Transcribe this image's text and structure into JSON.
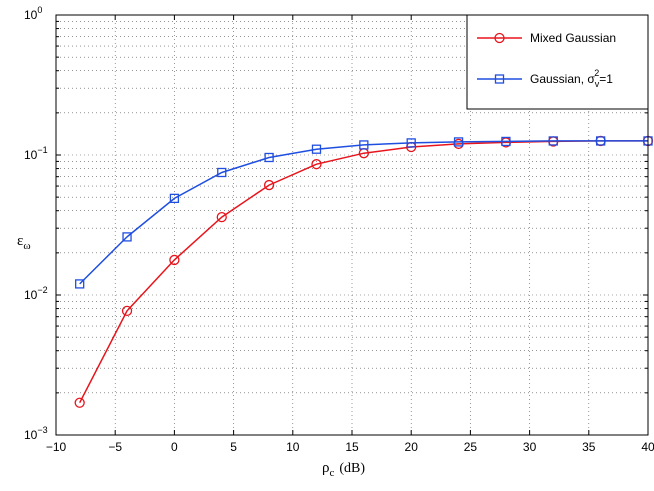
{
  "chart_data": {
    "type": "line",
    "yscale": "log",
    "xlabel": "ρc (dB)",
    "xlabel_symbol": "ρ",
    "xlabel_subscript": "c",
    "xlabel_unit": "(dB)",
    "ylabel": "εω",
    "ylabel_symbol": "ε",
    "ylabel_subscript": "ω",
    "xlim": [
      -10,
      40
    ],
    "ylim": [
      0.001,
      1
    ],
    "xticks": [
      -10,
      -5,
      0,
      5,
      10,
      15,
      20,
      25,
      30,
      35,
      40
    ],
    "xtick_labels": [
      "−10",
      "−5",
      "0",
      "5",
      "10",
      "15",
      "20",
      "25",
      "30",
      "35",
      "40"
    ],
    "yticks": [
      0.001,
      0.01,
      0.1,
      1
    ],
    "ytick_labels": [
      {
        "base": "10",
        "exp": "−3"
      },
      {
        "base": "10",
        "exp": "−2"
      },
      {
        "base": "10",
        "exp": "−1"
      },
      {
        "base": "10",
        "exp": "0"
      }
    ],
    "grid": true,
    "legend_position": "top-right",
    "x": [
      -8,
      -4,
      0,
      4,
      8,
      12,
      16,
      20,
      24,
      28,
      32,
      36,
      40
    ],
    "series": [
      {
        "name": "Mixed Gaussian",
        "color": "#e8141c",
        "marker": "circle",
        "values": [
          0.0017,
          0.0077,
          0.0178,
          0.036,
          0.061,
          0.086,
          0.103,
          0.114,
          0.12,
          0.123,
          0.125,
          0.126,
          0.126
        ]
      },
      {
        "name": "Gaussian, σv2=1",
        "legend_parts": {
          "text": "Gaussian, σ",
          "sub": "v",
          "sup": "2",
          "tail": "=1"
        },
        "color": "#1f4fe0",
        "marker": "square",
        "values": [
          0.012,
          0.026,
          0.049,
          0.075,
          0.096,
          0.11,
          0.118,
          0.122,
          0.124,
          0.125,
          0.126,
          0.126,
          0.126
        ]
      }
    ]
  }
}
